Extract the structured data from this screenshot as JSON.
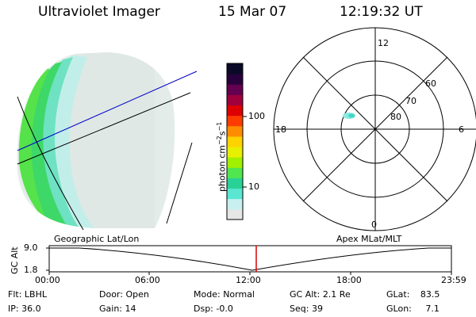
{
  "header": {
    "instrument": "Ultraviolet Imager",
    "date": "15 Mar 07",
    "time": "12:19:32 UT"
  },
  "colorbar": {
    "unit_label": "photon cm",
    "unit_exp1": "−2",
    "unit_mid": "s",
    "unit_exp2": "−1",
    "ticks": [
      {
        "label": "100",
        "value": 100
      },
      {
        "label": "10",
        "value": 10
      }
    ],
    "colors": [
      "#e6e6e6",
      "#c8f0f0",
      "#5ae6d2",
      "#28d296",
      "#50e650",
      "#a0f000",
      "#e6f000",
      "#ffd200",
      "#ff8c00",
      "#ff3c00",
      "#dc0000",
      "#a0003c",
      "#640050",
      "#28003c",
      "#0a0a28"
    ]
  },
  "polar_plot": {
    "mlt_labels": {
      "top": "12",
      "left": "18",
      "right": "6",
      "bottom": "0"
    },
    "lat_labels": [
      "60",
      "70",
      "80"
    ]
  },
  "timeline": {
    "axis_label": "GC Alt",
    "y_ticks": [
      "9.0",
      "1.8"
    ],
    "left_title": "Geographic Lat/Lon",
    "right_title": "Apex MLat/MLT",
    "x_ticks": [
      "00:00",
      "06:00",
      "12:00",
      "18:00",
      "23:59"
    ],
    "current_time_marker": "12:19"
  },
  "info": {
    "filter": {
      "label": "Flt:",
      "value": "LBHL"
    },
    "ip": {
      "label": "IP:",
      "value": "36.0"
    },
    "door": {
      "label": "Door:",
      "value": "Open"
    },
    "gain": {
      "label": "Gain:",
      "value": "14"
    },
    "mode": {
      "label": "Mode:",
      "value": "Normal"
    },
    "dsp": {
      "label": "Dsp:",
      "value": "-0.0"
    },
    "gc_alt": {
      "label": "GC Alt:",
      "value": "2.1 Re"
    },
    "seq": {
      "label": "Seq:",
      "value": "39"
    },
    "glat": {
      "label": "GLat:",
      "value": "83.5"
    },
    "glon": {
      "label": "GLon:",
      "value": "7.1"
    }
  },
  "colors": {
    "accent_red": "#dc0000",
    "orbit_blue": "#0000c8"
  }
}
